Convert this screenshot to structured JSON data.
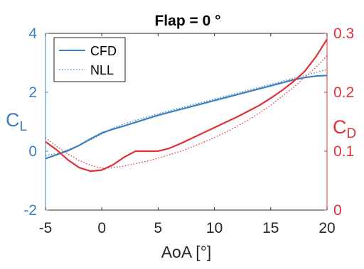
{
  "chart_data": {
    "type": "line",
    "title": "Flap = 0 °",
    "xlabel": "AoA [°]",
    "ylabel_left": "C",
    "ylabel_left_sub": "L",
    "ylabel_right": "C",
    "ylabel_right_sub": "D",
    "xlim": [
      -5,
      20
    ],
    "ylim_left": [
      -2,
      4
    ],
    "ylim_right": [
      0,
      0.3
    ],
    "xticks": [
      -5,
      0,
      5,
      10,
      15,
      20
    ],
    "yticks_left": [
      -2,
      0,
      2,
      4
    ],
    "yticks_right": [
      0,
      0.1,
      0.2,
      0.3
    ],
    "ytick_labels_right": [
      "0",
      "0.1",
      "0.2",
      "0.3"
    ],
    "legend": {
      "position": "top-left",
      "entries": [
        {
          "label": "CFD",
          "style": "solid"
        },
        {
          "label": "NLL",
          "style": "dotted"
        }
      ]
    },
    "colors": {
      "cl": "#3d7ebf",
      "cd": "#e03039",
      "cl_axis": "#3d7ebf",
      "cd_axis": "#e03039"
    },
    "series": [
      {
        "name": "CFD",
        "quantity": "CL",
        "axis": "left",
        "style": "solid",
        "x": [
          -5,
          -4,
          -3,
          -2,
          -1,
          0,
          1,
          2,
          3,
          4,
          5,
          6,
          7,
          8,
          9,
          10,
          11,
          12,
          13,
          14,
          15,
          16,
          17,
          18,
          19,
          20
        ],
        "y": [
          -0.25,
          -0.12,
          0.02,
          0.2,
          0.42,
          0.62,
          0.75,
          0.86,
          0.98,
          1.1,
          1.22,
          1.32,
          1.42,
          1.52,
          1.62,
          1.72,
          1.82,
          1.92,
          2.02,
          2.12,
          2.22,
          2.32,
          2.42,
          2.5,
          2.55,
          2.57
        ]
      },
      {
        "name": "NLL",
        "quantity": "CL",
        "axis": "left",
        "style": "dotted",
        "x": [
          -5,
          -4,
          -3,
          -2,
          -1,
          0,
          1,
          2,
          3,
          4,
          5,
          6,
          7,
          8,
          9,
          10,
          11,
          12,
          13,
          14,
          15,
          16,
          17,
          18,
          19,
          20
        ],
        "y": [
          -0.15,
          -0.08,
          0.05,
          0.2,
          0.38,
          0.58,
          0.78,
          0.93,
          1.05,
          1.16,
          1.27,
          1.37,
          1.47,
          1.57,
          1.67,
          1.77,
          1.87,
          1.97,
          2.07,
          2.17,
          2.27,
          2.37,
          2.47,
          2.57,
          2.67,
          2.77
        ]
      },
      {
        "name": "CFD",
        "quantity": "CD",
        "axis": "right",
        "style": "solid",
        "x": [
          -5,
          -4,
          -3,
          -2,
          -1,
          0,
          1,
          2,
          3,
          4,
          5,
          6,
          7,
          8,
          9,
          10,
          11,
          12,
          13,
          14,
          15,
          16,
          17,
          18,
          19,
          20
        ],
        "y": [
          0.116,
          0.102,
          0.085,
          0.072,
          0.066,
          0.068,
          0.077,
          0.09,
          0.1,
          0.1,
          0.1,
          0.105,
          0.113,
          0.122,
          0.131,
          0.14,
          0.149,
          0.158,
          0.168,
          0.178,
          0.19,
          0.203,
          0.218,
          0.235,
          0.26,
          0.29
        ]
      },
      {
        "name": "NLL",
        "quantity": "CD",
        "axis": "right",
        "style": "dotted",
        "x": [
          -5,
          -4,
          -3,
          -2,
          -1,
          0,
          1,
          2,
          3,
          4,
          5,
          6,
          7,
          8,
          9,
          10,
          11,
          12,
          13,
          14,
          15,
          16,
          17,
          18,
          19,
          20
        ],
        "y": [
          0.123,
          0.108,
          0.095,
          0.084,
          0.076,
          0.071,
          0.072,
          0.075,
          0.079,
          0.083,
          0.088,
          0.094,
          0.1,
          0.107,
          0.115,
          0.123,
          0.132,
          0.142,
          0.153,
          0.165,
          0.178,
          0.193,
          0.208,
          0.225,
          0.242,
          0.262
        ]
      }
    ]
  }
}
